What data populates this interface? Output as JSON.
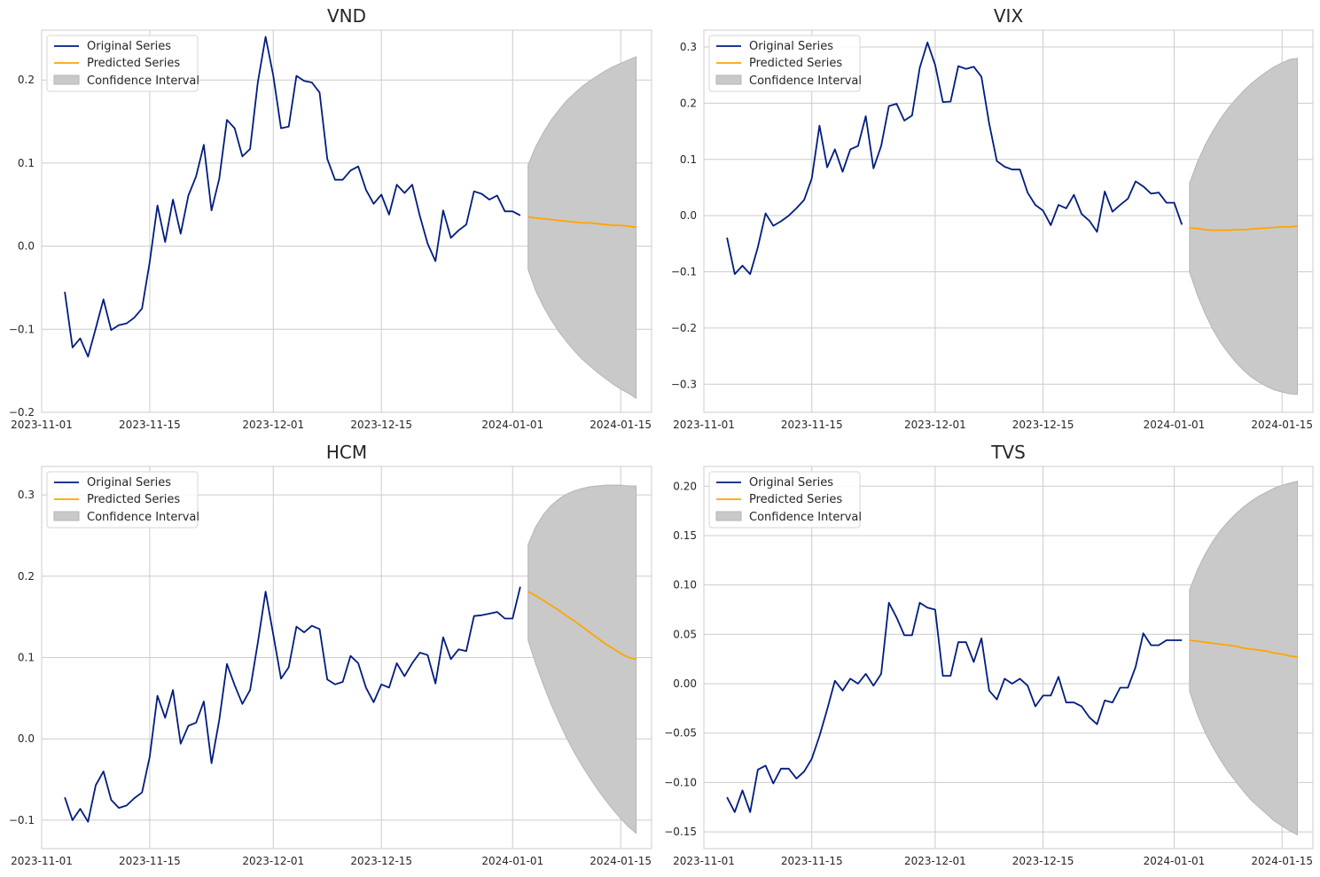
{
  "legend": {
    "original": "Original Series",
    "predicted": "Predicted Series",
    "ci": "Confidence Interval",
    "placement": "upper-left"
  },
  "colors": {
    "original": "#001c7f",
    "predicted": "#ffa500",
    "ci_fill": "#c9c9c9",
    "ci_edge": "#b5b5b5",
    "grid": "#cccccc",
    "spine": "#cccccc"
  },
  "chart_data": [
    {
      "type": "line",
      "title": "VND",
      "xlim": [
        "2023-11-01",
        "2024-01-19"
      ],
      "ylim": [
        -0.2,
        0.26
      ],
      "xticks": [
        "2023-11-01",
        "2023-11-15",
        "2023-12-01",
        "2023-12-15",
        "2024-01-01",
        "2024-01-15"
      ],
      "yticks": [
        -0.2,
        -0.1,
        0.0,
        0.1,
        0.2
      ],
      "ytick_labels": [
        "−0.2",
        "−0.1",
        "0.0",
        "0.1",
        "0.2"
      ],
      "grid": true,
      "original": {
        "x": [
          "2023-11-04",
          "2023-11-05",
          "2023-11-06",
          "2023-11-07",
          "2023-11-08",
          "2023-11-09",
          "2023-11-10",
          "2023-11-11",
          "2023-11-12",
          "2023-11-13",
          "2023-11-14",
          "2023-11-15",
          "2023-11-16",
          "2023-11-17",
          "2023-11-18",
          "2023-11-19",
          "2023-11-20",
          "2023-11-21",
          "2023-11-22",
          "2023-11-23",
          "2023-11-24",
          "2023-11-25",
          "2023-11-26",
          "2023-11-27",
          "2023-11-28",
          "2023-11-29",
          "2023-11-30",
          "2023-12-01",
          "2023-12-02",
          "2023-12-03",
          "2023-12-04",
          "2023-12-05",
          "2023-12-06",
          "2023-12-07",
          "2023-12-08",
          "2023-12-09",
          "2023-12-10",
          "2023-12-11",
          "2023-12-12",
          "2023-12-13",
          "2023-12-14",
          "2023-12-15",
          "2023-12-16",
          "2023-12-17",
          "2023-12-18",
          "2023-12-19",
          "2023-12-20",
          "2023-12-21",
          "2023-12-22",
          "2023-12-23",
          "2023-12-24",
          "2023-12-25",
          "2023-12-26",
          "2023-12-27",
          "2023-12-28",
          "2023-12-29",
          "2023-12-30",
          "2023-12-31",
          "2024-01-01",
          "2024-01-02"
        ],
        "y": [
          -0.055,
          -0.122,
          -0.111,
          -0.133,
          -0.099,
          -0.064,
          -0.101,
          -0.095,
          -0.093,
          -0.086,
          -0.075,
          -0.019,
          0.049,
          0.005,
          0.056,
          0.015,
          0.061,
          0.084,
          0.122,
          0.043,
          0.081,
          0.152,
          0.142,
          0.108,
          0.117,
          0.197,
          0.252,
          0.205,
          0.142,
          0.144,
          0.205,
          0.199,
          0.197,
          0.185,
          0.105,
          0.08,
          0.08,
          0.091,
          0.096,
          0.068,
          0.051,
          0.062,
          0.038,
          0.074,
          0.064,
          0.074,
          0.036,
          0.003,
          -0.018,
          0.043,
          0.01,
          0.019,
          0.026,
          0.066,
          0.063,
          0.056,
          0.061,
          0.042,
          0.042,
          0.037
        ]
      },
      "forecast": {
        "x": [
          "2024-01-03",
          "2024-01-04",
          "2024-01-05",
          "2024-01-06",
          "2024-01-07",
          "2024-01-08",
          "2024-01-09",
          "2024-01-10",
          "2024-01-11",
          "2024-01-12",
          "2024-01-13",
          "2024-01-14",
          "2024-01-15",
          "2024-01-16",
          "2024-01-17"
        ],
        "mean": [
          0.035,
          0.034,
          0.033,
          0.032,
          0.031,
          0.03,
          0.029,
          0.028,
          0.028,
          0.027,
          0.026,
          0.025,
          0.025,
          0.024,
          0.023
        ],
        "upper": [
          0.098,
          0.12,
          0.137,
          0.152,
          0.164,
          0.175,
          0.184,
          0.192,
          0.199,
          0.205,
          0.211,
          0.216,
          0.22,
          0.224,
          0.228
        ],
        "lower": [
          -0.028,
          -0.054,
          -0.073,
          -0.089,
          -0.103,
          -0.115,
          -0.126,
          -0.136,
          -0.144,
          -0.152,
          -0.159,
          -0.166,
          -0.172,
          -0.177,
          -0.183
        ]
      }
    },
    {
      "type": "line",
      "title": "VIX",
      "xlim": [
        "2023-11-01",
        "2024-01-19"
      ],
      "ylim": [
        -0.35,
        0.33
      ],
      "xticks": [
        "2023-11-01",
        "2023-11-15",
        "2023-12-01",
        "2023-12-15",
        "2024-01-01",
        "2024-01-15"
      ],
      "yticks": [
        -0.3,
        -0.2,
        -0.1,
        0.0,
        0.1,
        0.2,
        0.3
      ],
      "ytick_labels": [
        "−0.3",
        "−0.2",
        "−0.1",
        "0.0",
        "0.1",
        "0.2",
        "0.3"
      ],
      "grid": true,
      "original": {
        "x": [
          "2023-11-04",
          "2023-11-05",
          "2023-11-06",
          "2023-11-07",
          "2023-11-08",
          "2023-11-09",
          "2023-11-10",
          "2023-11-11",
          "2023-11-12",
          "2023-11-13",
          "2023-11-14",
          "2023-11-15",
          "2023-11-16",
          "2023-11-17",
          "2023-11-18",
          "2023-11-19",
          "2023-11-20",
          "2023-11-21",
          "2023-11-22",
          "2023-11-23",
          "2023-11-24",
          "2023-11-25",
          "2023-11-26",
          "2023-11-27",
          "2023-11-28",
          "2023-11-29",
          "2023-11-30",
          "2023-12-01",
          "2023-12-02",
          "2023-12-03",
          "2023-12-04",
          "2023-12-05",
          "2023-12-06",
          "2023-12-07",
          "2023-12-08",
          "2023-12-09",
          "2023-12-10",
          "2023-12-11",
          "2023-12-12",
          "2023-12-13",
          "2023-12-14",
          "2023-12-15",
          "2023-12-16",
          "2023-12-17",
          "2023-12-18",
          "2023-12-19",
          "2023-12-20",
          "2023-12-21",
          "2023-12-22",
          "2023-12-23",
          "2023-12-24",
          "2023-12-25",
          "2023-12-26",
          "2023-12-27",
          "2023-12-28",
          "2023-12-29",
          "2023-12-30",
          "2023-12-31",
          "2024-01-01",
          "2024-01-02"
        ],
        "y": [
          -0.039,
          -0.104,
          -0.089,
          -0.104,
          -0.056,
          0.004,
          -0.018,
          -0.01,
          0.0,
          0.013,
          0.028,
          0.066,
          0.16,
          0.086,
          0.118,
          0.078,
          0.118,
          0.124,
          0.177,
          0.084,
          0.124,
          0.195,
          0.199,
          0.169,
          0.178,
          0.263,
          0.308,
          0.268,
          0.202,
          0.203,
          0.266,
          0.261,
          0.265,
          0.247,
          0.164,
          0.097,
          0.087,
          0.082,
          0.082,
          0.041,
          0.019,
          0.009,
          -0.017,
          0.019,
          0.013,
          0.037,
          0.003,
          -0.009,
          -0.029,
          0.043,
          0.007,
          0.019,
          0.03,
          0.061,
          0.052,
          0.039,
          0.041,
          0.023,
          0.023,
          -0.016
        ]
      },
      "forecast": {
        "x": [
          "2024-01-03",
          "2024-01-04",
          "2024-01-05",
          "2024-01-06",
          "2024-01-07",
          "2024-01-08",
          "2024-01-09",
          "2024-01-10",
          "2024-01-11",
          "2024-01-12",
          "2024-01-13",
          "2024-01-14",
          "2024-01-15",
          "2024-01-16",
          "2024-01-17"
        ],
        "mean": [
          -0.022,
          -0.023,
          -0.025,
          -0.026,
          -0.026,
          -0.026,
          -0.025,
          -0.025,
          -0.024,
          -0.023,
          -0.022,
          -0.021,
          -0.02,
          -0.02,
          -0.019
        ],
        "upper": [
          0.058,
          0.095,
          0.125,
          0.15,
          0.172,
          0.191,
          0.207,
          0.222,
          0.235,
          0.246,
          0.256,
          0.265,
          0.272,
          0.278,
          0.28
        ],
        "lower": [
          -0.101,
          -0.141,
          -0.174,
          -0.202,
          -0.225,
          -0.244,
          -0.261,
          -0.275,
          -0.287,
          -0.296,
          -0.304,
          -0.31,
          -0.314,
          -0.317,
          -0.318
        ]
      }
    },
    {
      "type": "line",
      "title": "HCM",
      "xlim": [
        "2023-11-01",
        "2024-01-19"
      ],
      "ylim": [
        -0.135,
        0.335
      ],
      "xticks": [
        "2023-11-01",
        "2023-11-15",
        "2023-12-01",
        "2023-12-15",
        "2024-01-01",
        "2024-01-15"
      ],
      "yticks": [
        -0.1,
        0.0,
        0.1,
        0.2,
        0.3
      ],
      "ytick_labels": [
        "−0.1",
        "0.0",
        "0.1",
        "0.2",
        "0.3"
      ],
      "grid": true,
      "original": {
        "x": [
          "2023-11-04",
          "2023-11-05",
          "2023-11-06",
          "2023-11-07",
          "2023-11-08",
          "2023-11-09",
          "2023-11-10",
          "2023-11-11",
          "2023-11-12",
          "2023-11-13",
          "2023-11-14",
          "2023-11-15",
          "2023-11-16",
          "2023-11-17",
          "2023-11-18",
          "2023-11-19",
          "2023-11-20",
          "2023-11-21",
          "2023-11-22",
          "2023-11-23",
          "2023-11-24",
          "2023-11-25",
          "2023-11-26",
          "2023-11-27",
          "2023-11-28",
          "2023-11-29",
          "2023-11-30",
          "2023-12-01",
          "2023-12-02",
          "2023-12-03",
          "2023-12-04",
          "2023-12-05",
          "2023-12-06",
          "2023-12-07",
          "2023-12-08",
          "2023-12-09",
          "2023-12-10",
          "2023-12-11",
          "2023-12-12",
          "2023-12-13",
          "2023-12-14",
          "2023-12-15",
          "2023-12-16",
          "2023-12-17",
          "2023-12-18",
          "2023-12-19",
          "2023-12-20",
          "2023-12-21",
          "2023-12-22",
          "2023-12-23",
          "2023-12-24",
          "2023-12-25",
          "2023-12-26",
          "2023-12-27",
          "2023-12-28",
          "2023-12-29",
          "2023-12-30",
          "2023-12-31",
          "2024-01-01",
          "2024-01-02"
        ],
        "y": [
          -0.072,
          -0.1,
          -0.086,
          -0.102,
          -0.057,
          -0.04,
          -0.075,
          -0.085,
          -0.082,
          -0.073,
          -0.066,
          -0.022,
          0.053,
          0.026,
          0.06,
          -0.006,
          0.016,
          0.02,
          0.046,
          -0.03,
          0.023,
          0.092,
          0.066,
          0.043,
          0.06,
          0.118,
          0.181,
          0.128,
          0.074,
          0.088,
          0.138,
          0.131,
          0.139,
          0.135,
          0.073,
          0.067,
          0.07,
          0.102,
          0.093,
          0.063,
          0.045,
          0.067,
          0.063,
          0.093,
          0.077,
          0.093,
          0.106,
          0.103,
          0.068,
          0.125,
          0.098,
          0.11,
          0.108,
          0.151,
          0.152,
          0.154,
          0.156,
          0.148,
          0.148,
          0.187
        ]
      },
      "forecast": {
        "x": [
          "2024-01-03",
          "2024-01-04",
          "2024-01-05",
          "2024-01-06",
          "2024-01-07",
          "2024-01-08",
          "2024-01-09",
          "2024-01-10",
          "2024-01-11",
          "2024-01-12",
          "2024-01-13",
          "2024-01-14",
          "2024-01-15",
          "2024-01-16",
          "2024-01-17"
        ],
        "mean": [
          0.181,
          0.176,
          0.17,
          0.164,
          0.158,
          0.151,
          0.145,
          0.138,
          0.131,
          0.124,
          0.117,
          0.111,
          0.105,
          0.1,
          0.098
        ],
        "upper": [
          0.239,
          0.261,
          0.276,
          0.287,
          0.295,
          0.301,
          0.305,
          0.308,
          0.31,
          0.311,
          0.312,
          0.312,
          0.312,
          0.311,
          0.311
        ],
        "lower": [
          0.121,
          0.092,
          0.066,
          0.042,
          0.021,
          0.001,
          -0.017,
          -0.033,
          -0.048,
          -0.062,
          -0.075,
          -0.087,
          -0.098,
          -0.108,
          -0.116
        ]
      }
    },
    {
      "type": "line",
      "title": "TVS",
      "xlim": [
        "2023-11-01",
        "2024-01-19"
      ],
      "ylim": [
        -0.167,
        0.22
      ],
      "xticks": [
        "2023-11-01",
        "2023-11-15",
        "2023-12-01",
        "2023-12-15",
        "2024-01-01",
        "2024-01-15"
      ],
      "yticks": [
        -0.15,
        -0.1,
        -0.05,
        0.0,
        0.05,
        0.1,
        0.15,
        0.2
      ],
      "ytick_labels": [
        "−0.15",
        "−0.10",
        "−0.05",
        "0.00",
        "0.05",
        "0.10",
        "0.15",
        "0.20"
      ],
      "grid": true,
      "original": {
        "x": [
          "2023-11-04",
          "2023-11-05",
          "2023-11-06",
          "2023-11-07",
          "2023-11-08",
          "2023-11-09",
          "2023-11-10",
          "2023-11-11",
          "2023-11-12",
          "2023-11-13",
          "2023-11-14",
          "2023-11-15",
          "2023-11-16",
          "2023-11-17",
          "2023-11-18",
          "2023-11-19",
          "2023-11-20",
          "2023-11-21",
          "2023-11-22",
          "2023-11-23",
          "2023-11-24",
          "2023-11-25",
          "2023-11-26",
          "2023-11-27",
          "2023-11-28",
          "2023-11-29",
          "2023-11-30",
          "2023-12-01",
          "2023-12-02",
          "2023-12-03",
          "2023-12-04",
          "2023-12-05",
          "2023-12-06",
          "2023-12-07",
          "2023-12-08",
          "2023-12-09",
          "2023-12-10",
          "2023-12-11",
          "2023-12-12",
          "2023-12-13",
          "2023-12-14",
          "2023-12-15",
          "2023-12-16",
          "2023-12-17",
          "2023-12-18",
          "2023-12-19",
          "2023-12-20",
          "2023-12-21",
          "2023-12-22",
          "2023-12-23",
          "2023-12-24",
          "2023-12-25",
          "2023-12-26",
          "2023-12-27",
          "2023-12-28",
          "2023-12-29",
          "2023-12-30",
          "2023-12-31",
          "2024-01-01",
          "2024-01-02"
        ],
        "y": [
          -0.115,
          -0.13,
          -0.108,
          -0.13,
          -0.087,
          -0.083,
          -0.101,
          -0.086,
          -0.086,
          -0.096,
          -0.089,
          -0.076,
          -0.053,
          -0.026,
          0.003,
          -0.007,
          0.005,
          0.0,
          0.01,
          -0.002,
          0.01,
          0.082,
          0.067,
          0.049,
          0.049,
          0.082,
          0.077,
          0.075,
          0.008,
          0.008,
          0.042,
          0.042,
          0.022,
          0.046,
          -0.007,
          -0.016,
          0.005,
          0.0,
          0.005,
          -0.002,
          -0.023,
          -0.012,
          -0.012,
          0.007,
          -0.019,
          -0.019,
          -0.023,
          -0.034,
          -0.041,
          -0.017,
          -0.019,
          -0.004,
          -0.004,
          0.017,
          0.051,
          0.039,
          0.039,
          0.044,
          0.044,
          0.044
        ]
      },
      "forecast": {
        "x": [
          "2024-01-03",
          "2024-01-04",
          "2024-01-05",
          "2024-01-06",
          "2024-01-07",
          "2024-01-08",
          "2024-01-09",
          "2024-01-10",
          "2024-01-11",
          "2024-01-12",
          "2024-01-13",
          "2024-01-14",
          "2024-01-15",
          "2024-01-16",
          "2024-01-17"
        ],
        "mean": [
          0.044,
          0.043,
          0.042,
          0.041,
          0.04,
          0.039,
          0.038,
          0.036,
          0.035,
          0.034,
          0.033,
          0.031,
          0.03,
          0.028,
          0.027
        ],
        "upper": [
          0.095,
          0.115,
          0.131,
          0.144,
          0.155,
          0.164,
          0.172,
          0.179,
          0.185,
          0.19,
          0.194,
          0.198,
          0.201,
          0.203,
          0.205
        ],
        "lower": [
          -0.008,
          -0.031,
          -0.049,
          -0.064,
          -0.077,
          -0.089,
          -0.099,
          -0.109,
          -0.118,
          -0.125,
          -0.132,
          -0.139,
          -0.144,
          -0.149,
          -0.153
        ]
      }
    }
  ]
}
